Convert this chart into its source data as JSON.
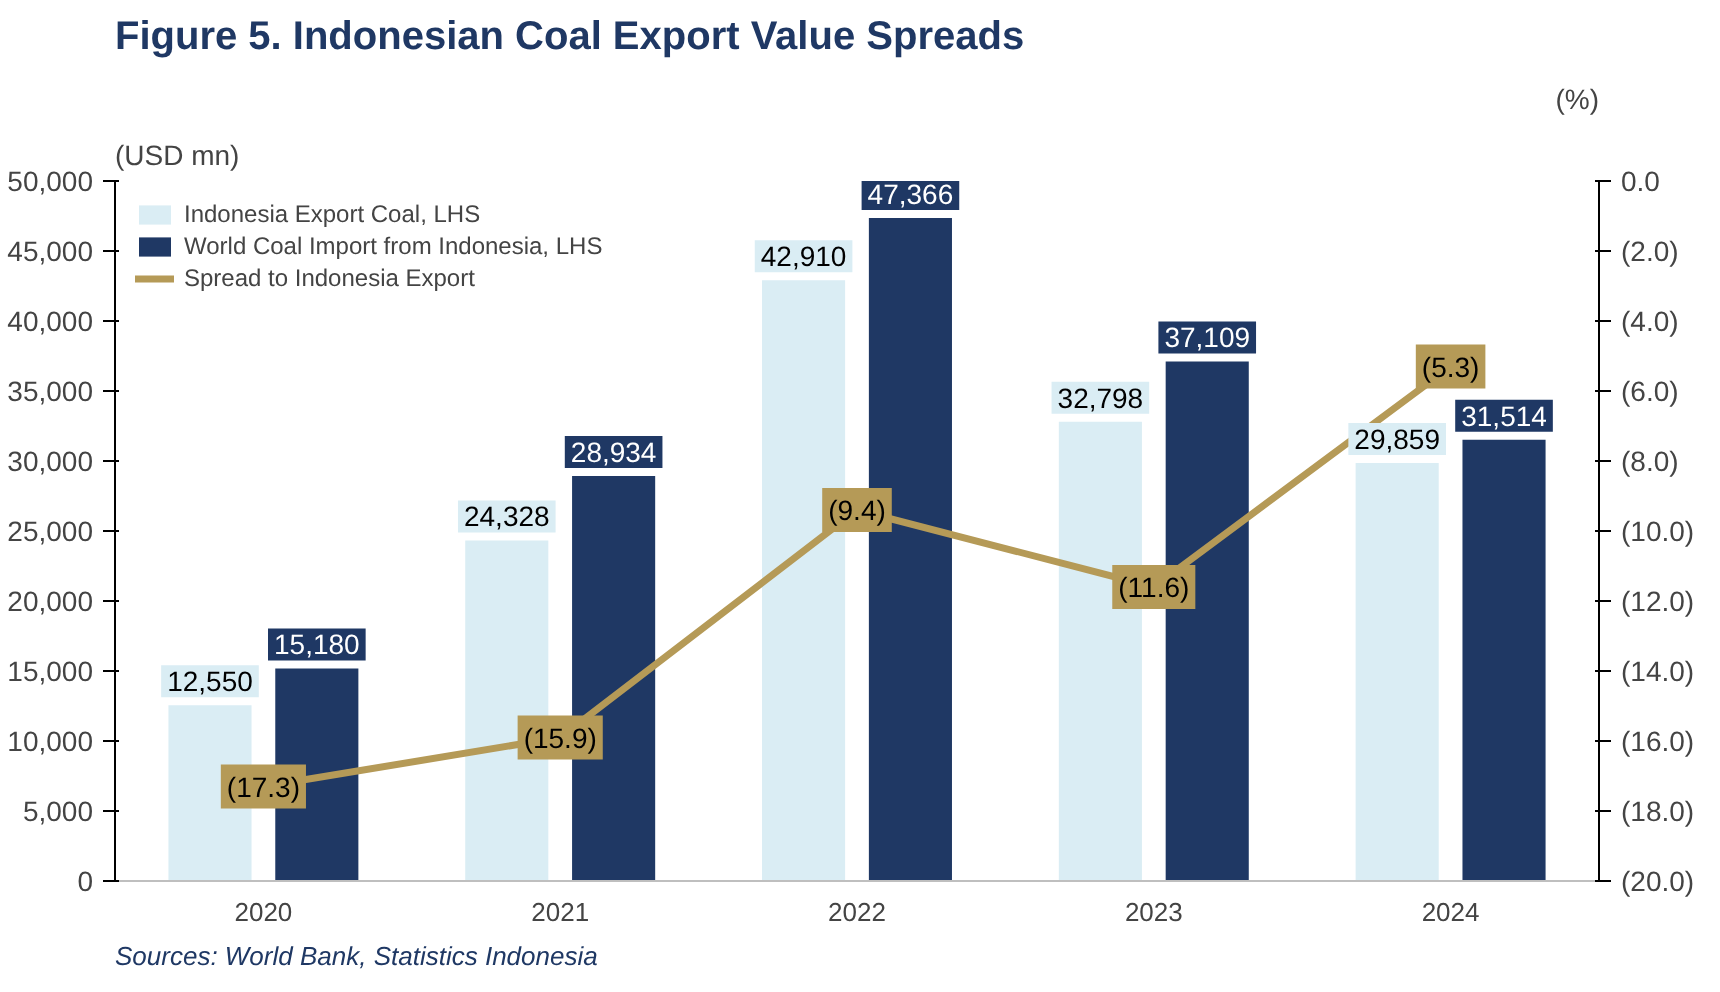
{
  "chart_data": {
    "type": "bar",
    "title": "Figure 5. Indonesian Coal Export Value Spreads",
    "ylabel": "(USD mn)",
    "y2label": "(%)",
    "categories": [
      "2020",
      "2021",
      "2022",
      "2023",
      "2024"
    ],
    "series": [
      {
        "name": "Indonesia Export Coal, LHS",
        "color": "#daedf4",
        "values": [
          12550,
          24328,
          42910,
          32798,
          29859
        ],
        "value_labels": [
          "12,550",
          "24,328",
          "42,910",
          "32,798",
          "29,859"
        ]
      },
      {
        "name": "World Coal Import from Indonesia, LHS",
        "color": "#1f3864",
        "values": [
          15180,
          28934,
          47366,
          37109,
          31514
        ],
        "value_labels": [
          "15,180",
          "28,934",
          "47,366",
          "37,109",
          "31,514"
        ]
      },
      {
        "name": "Spread to Indonesia Export",
        "type": "line",
        "axis": "y2",
        "color": "#b59a57",
        "values": [
          -17.3,
          -15.9,
          -9.4,
          -11.6,
          -5.3
        ],
        "value_labels": [
          "(17.3)",
          "(15.9)",
          "(9.4)",
          "(11.6)",
          "(5.3)"
        ]
      }
    ],
    "ylim": [
      0,
      50000
    ],
    "yticks": [
      0,
      {
        "value": 5000,
        "label": "5,000"
      },
      {
        "value": 10000,
        "label": "10,000"
      },
      {
        "value": 15000,
        "label": "15,000"
      },
      {
        "value": 20000,
        "label": "20,000"
      },
      {
        "value": 25000,
        "label": "25,000"
      },
      {
        "value": 30000,
        "label": "30,000"
      },
      {
        "value": 35000,
        "label": "35,000"
      },
      {
        "value": 40000,
        "label": "40,000"
      },
      {
        "value": 45000,
        "label": "45,000"
      },
      {
        "value": 50000,
        "label": "50,000"
      }
    ],
    "y2lim": [
      -20,
      0
    ],
    "y2ticks": [
      {
        "value": 0,
        "label": "0.0"
      },
      {
        "value": -2,
        "label": "(2.0)"
      },
      {
        "value": -4,
        "label": "(4.0)"
      },
      {
        "value": -6,
        "label": "(6.0)"
      },
      {
        "value": -8,
        "label": "(8.0)"
      },
      {
        "value": -10,
        "label": "(10.0)"
      },
      {
        "value": -12,
        "label": "(12.0)"
      },
      {
        "value": -14,
        "label": "(14.0)"
      },
      {
        "value": -16,
        "label": "(16.0)"
      },
      {
        "value": -18,
        "label": "(18.0)"
      },
      {
        "value": -20,
        "label": "(20.0)"
      }
    ],
    "grid": false,
    "legend": "top left",
    "marker": "square",
    "annotations": [
      "Sources: World Bank, Statistics Indonesia"
    ]
  }
}
